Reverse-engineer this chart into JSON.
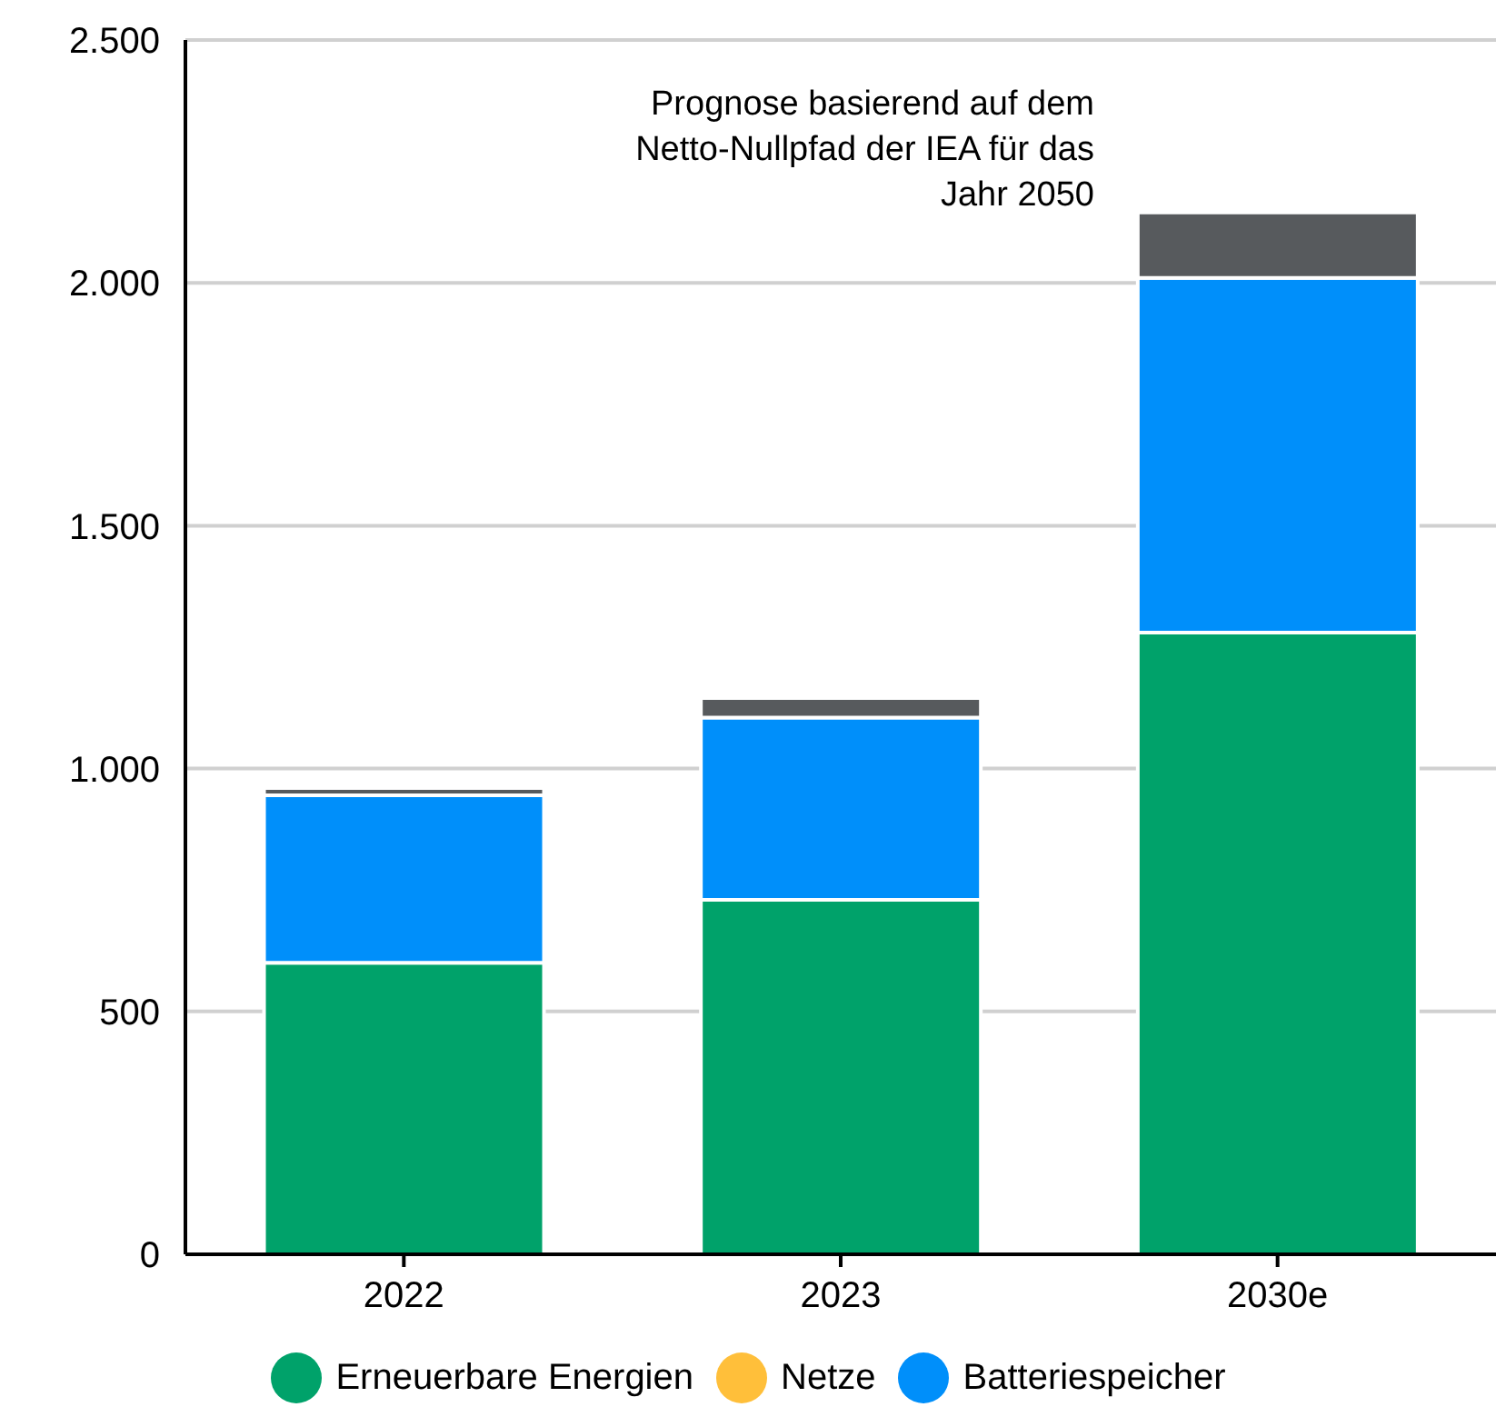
{
  "chart_data": {
    "type": "bar",
    "stacked": true,
    "categories": [
      "2022",
      "2023",
      "2030e"
    ],
    "series": [
      {
        "name": "Erneuerbare Energien",
        "color": "#00a26a",
        "values": [
          600,
          730,
          1280
        ]
      },
      {
        "name": "Netze",
        "color": "#ffbf3a",
        "values": [
          0,
          0,
          0
        ]
      },
      {
        "name": "Batteriespeicher",
        "color": "#008ffa",
        "values": [
          345,
          375,
          730
        ]
      },
      {
        "color": "#575a5d",
        "values": [
          15,
          40,
          135
        ]
      }
    ],
    "ylim": [
      0,
      2500
    ],
    "yticks": [
      {
        "value": 0,
        "label": "0"
      },
      {
        "value": 500,
        "label": "500"
      },
      {
        "value": 1000,
        "label": "1.000"
      },
      {
        "value": 1500,
        "label": "1.500"
      },
      {
        "value": 2000,
        "label": "2.000"
      },
      {
        "value": 2500,
        "label": "2.500"
      }
    ],
    "grid": "y",
    "legend": "bottom",
    "annotations": [
      "Prognose basierend auf dem Netto-Nullpfad der IEA für das Jahr 2050"
    ]
  }
}
